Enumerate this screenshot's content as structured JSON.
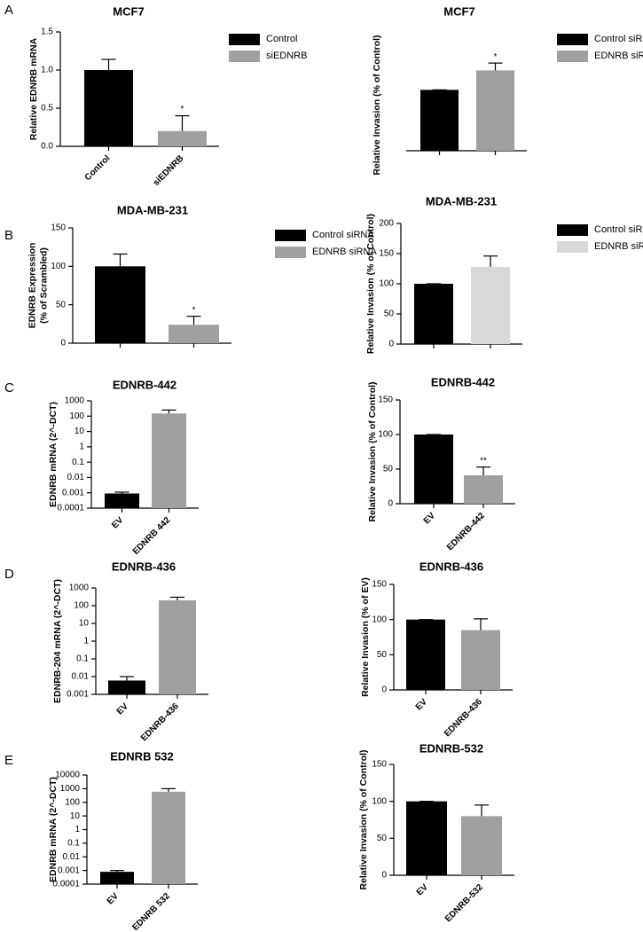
{
  "panel_labels": [
    "A",
    "B",
    "C",
    "D",
    "E"
  ],
  "chart_data": [
    {
      "type": "bar",
      "title": "MCF7",
      "ylabel": [
        "Relative EDNRB mRNA"
      ],
      "categories": [
        "Control",
        "siEDNRB"
      ],
      "values": [
        1.0,
        0.2
      ],
      "errors": [
        0.14,
        0.2
      ],
      "colors": [
        "#000000",
        "#a0a0a0"
      ],
      "legend": [
        "Control",
        "siEDNRB"
      ],
      "annotations": [
        null,
        "*"
      ],
      "ylim": [
        0,
        1.5
      ],
      "yticks": [
        {
          "value": 0,
          "label": "0.0"
        },
        0.5,
        {
          "value": 1,
          "label": "1.0"
        },
        1.5
      ],
      "log": false
    },
    {
      "type": "bar",
      "title": "MCF7",
      "ylabel": [
        "Relative Invasion (% of Control)"
      ],
      "categories": [
        null,
        null
      ],
      "values": [
        100,
        132
      ],
      "errors": [
        0,
        12
      ],
      "colors": [
        "#000000",
        "#a0a0a0"
      ],
      "legend": [
        "Control siRNA",
        "EDNRB siRNA"
      ],
      "annotations": [
        null,
        "*"
      ],
      "ylim": [
        0,
        150
      ],
      "yticks": [],
      "log": false
    },
    {
      "type": "bar",
      "title": "MDA-MB-231",
      "ylabel": [
        "EDNRB Expression",
        "(% of Scrambled)"
      ],
      "categories": [
        null,
        null
      ],
      "values": [
        100,
        24
      ],
      "errors": [
        16,
        11
      ],
      "colors": [
        "#000000",
        "#a0a0a0"
      ],
      "legend": [
        "Control siRNA",
        "EDNRB siRNA"
      ],
      "annotations": [
        null,
        "*"
      ],
      "ylim": [
        0,
        150
      ],
      "yticks": [
        0,
        50,
        100,
        150
      ],
      "log": false
    },
    {
      "type": "bar",
      "title": "MDA-MB-231",
      "ylabel": [
        "Relative Invasion (% of Control)"
      ],
      "categories": [
        null,
        null
      ],
      "values": [
        100,
        128
      ],
      "errors": [
        0,
        18
      ],
      "colors": [
        "#000000",
        "#d9d9d9"
      ],
      "legend": [
        "Control siRNA",
        "EDNRB siRNA"
      ],
      "ylim": [
        0,
        200
      ],
      "yticks": [
        0,
        50,
        100,
        150,
        200
      ],
      "log": false
    },
    {
      "type": "bar",
      "title": "EDNRB-442",
      "ylabel": [
        "EDNRB mRNA (2^-DCT)"
      ],
      "categories": [
        "EV",
        "EDNRB 442"
      ],
      "values": [
        0.0009,
        150
      ],
      "errors": [
        0.0002,
        100
      ],
      "colors": [
        "#000000",
        "#a0a0a0"
      ],
      "ylim": [
        0.0001,
        1000
      ],
      "yticks": [
        0.0001,
        0.001,
        0.01,
        0.1,
        1,
        10,
        100,
        1000
      ],
      "log": true
    },
    {
      "type": "bar",
      "title": "EDNRB-442",
      "ylabel": [
        "Relative Invasion (% of Control)"
      ],
      "categories": [
        "EV",
        "EDNRB-442"
      ],
      "values": [
        100,
        41
      ],
      "errors": [
        0,
        12
      ],
      "colors": [
        "#000000",
        "#a0a0a0"
      ],
      "annotations": [
        null,
        "**"
      ],
      "ylim": [
        0,
        150
      ],
      "yticks": [
        0,
        50,
        100,
        150
      ],
      "log": false
    },
    {
      "type": "bar",
      "title": "EDNRB-436",
      "ylabel": [
        "EDNRB-204 mRNA (2^-DCT)"
      ],
      "categories": [
        "EV",
        "EDNRB-436"
      ],
      "values": [
        0.006,
        200
      ],
      "errors": [
        0.004,
        100
      ],
      "colors": [
        "#000000",
        "#a0a0a0"
      ],
      "ylim": [
        0.001,
        1000
      ],
      "yticks": [
        0.001,
        0.01,
        0.1,
        1,
        10,
        100,
        1000
      ],
      "log": true
    },
    {
      "type": "bar",
      "title": "EDNRB-436",
      "ylabel": [
        "Relative Invasion (% of EV)"
      ],
      "categories": [
        "EV",
        "EDNRB-436"
      ],
      "values": [
        100,
        85
      ],
      "errors": [
        0,
        16
      ],
      "colors": [
        "#000000",
        "#a0a0a0"
      ],
      "ylim": [
        0,
        150
      ],
      "yticks": [
        0,
        50,
        100,
        150
      ],
      "log": false
    },
    {
      "type": "bar",
      "title": "EDNRB 532",
      "ylabel": [
        "EDNRB mRNA (2^-DCT)"
      ],
      "categories": [
        "EV",
        "EDNRB 532"
      ],
      "values": [
        0.0008,
        600
      ],
      "errors": [
        0.0002,
        400
      ],
      "colors": [
        "#000000",
        "#a0a0a0"
      ],
      "ylim": [
        0.0001,
        10000
      ],
      "yticks": [
        0.0001,
        0.001,
        0.01,
        0.1,
        1,
        10,
        100,
        1000,
        10000
      ],
      "log": true
    },
    {
      "type": "bar",
      "title": "EDNRB-532",
      "ylabel": [
        "Relative Invasion (% of Control)"
      ],
      "categories": [
        "EV",
        "EDNRB-532"
      ],
      "values": [
        100,
        80
      ],
      "errors": [
        0,
        15
      ],
      "colors": [
        "#000000",
        "#a0a0a0"
      ],
      "ylim": [
        0,
        150
      ],
      "yticks": [
        0,
        50,
        100,
        150
      ],
      "log": false
    }
  ]
}
